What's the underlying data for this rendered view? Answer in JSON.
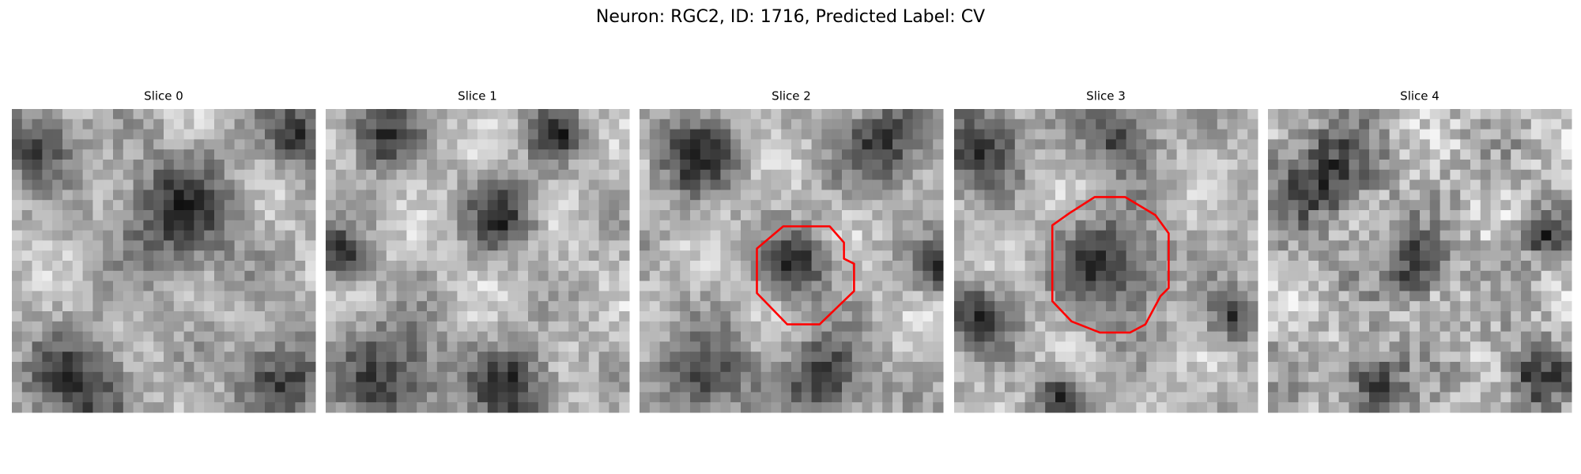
{
  "title": "Neuron: RGC2, ID: 1716, Predicted Label: CV",
  "panels": [
    {
      "title": "Slice 0"
    },
    {
      "title": "Slice 1"
    },
    {
      "title": "Slice 2"
    },
    {
      "title": "Slice 3"
    },
    {
      "title": "Slice 4"
    }
  ]
}
